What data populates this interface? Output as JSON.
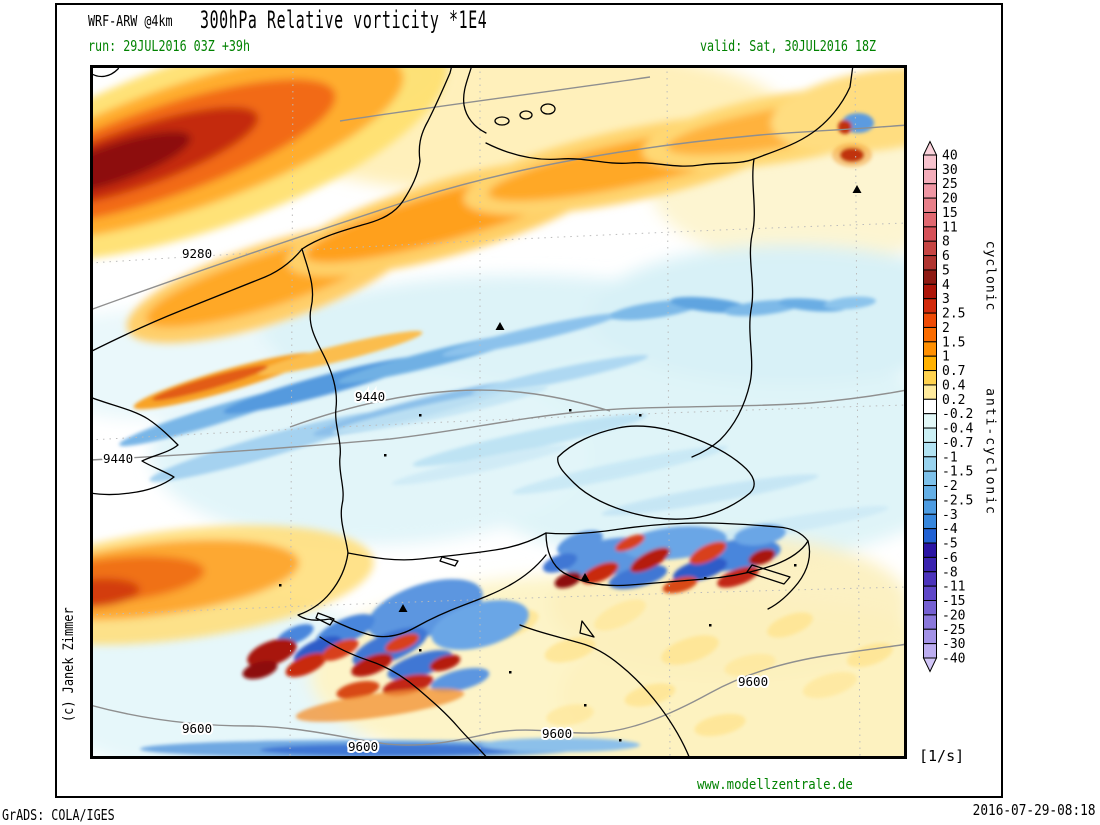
{
  "header": {
    "model": "WRF-ARW @4km",
    "title": "300hPa Relative vorticity *1E4",
    "run": "run: 29JUL2016 03Z +39h",
    "valid": "valid: Sat, 30JUL2016 18Z"
  },
  "colorbar": {
    "labels": [
      "40",
      "30",
      "25",
      "20",
      "15",
      "11",
      "8",
      "6",
      "5",
      "4",
      "3",
      "2.5",
      "2",
      "1.5",
      "1",
      "0.7",
      "0.4",
      "0.2",
      "-0.2",
      "-0.4",
      "-0.7",
      "-1",
      "-1.5",
      "-2",
      "-2.5",
      "-3",
      "-4",
      "-5",
      "-6",
      "-8",
      "-11",
      "-15",
      "-20",
      "-25",
      "-30",
      "-40"
    ],
    "segment_colors": [
      "#f8c3ce",
      "#f4adba",
      "#ef96a3",
      "#e87f89",
      "#e06870",
      "#d65158",
      "#c64543",
      "#b03530",
      "#8e1a13",
      "#ad1509",
      "#d22a0c",
      "#ef4a05",
      "#fb6c00",
      "#ff8f00",
      "#ffb100",
      "#ffd24e",
      "#ffeb9d",
      "#ffffff",
      "#e2f8f8",
      "#cbf0f5",
      "#b2e3f3",
      "#98d3ef",
      "#7dc1ea",
      "#64afe6",
      "#4d9ce2",
      "#3787dd",
      "#2161d3",
      "#2a14a4",
      "#3a23af",
      "#4c34bc",
      "#5f47c8",
      "#7560d2",
      "#8b78dc",
      "#a392e6",
      "#bcadf0"
    ],
    "arrow_top_color": "#fbd3dc",
    "arrow_bottom_color": "#d2c6f8",
    "cyclonic_label": "cyclonic",
    "anticyclonic_label": "anti-cyclonic",
    "unit": "[1/s]"
  },
  "map": {
    "contour_labels": {
      "h9280": "9280",
      "h9440": "9440",
      "h9600": "9600"
    }
  },
  "footer": {
    "website": "www.modellzentrale.de",
    "credit": "GrADS: COLA/IGES",
    "timestamp": "2016-07-29-08:18",
    "copyright": "(c) Janek Zimmer"
  },
  "colors": {
    "header_green": "#008200",
    "frame_black": "#000000"
  }
}
